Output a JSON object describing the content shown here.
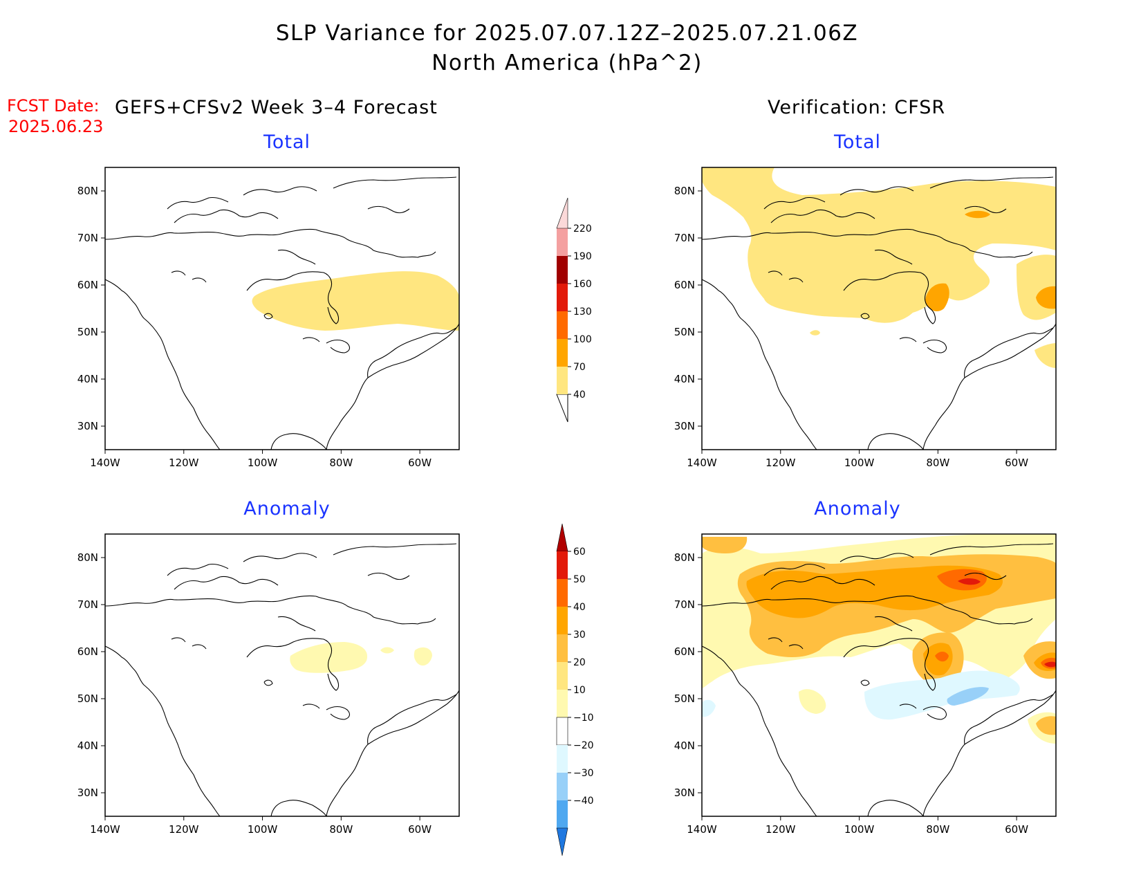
{
  "header": {
    "title_line1": "SLP Variance for 2025.07.07.12Z–2025.07.21.06Z",
    "title_line2": "North America (hPa^2)",
    "fcst_label": "FCST Date:",
    "fcst_date": "2025.06.23",
    "left_column_title": "GEFS+CFSv2 Week 3–4 Forecast",
    "right_column_title": "Verification: CFSR"
  },
  "panels": [
    {
      "id": "fcst-total",
      "subtitle": "Total"
    },
    {
      "id": "verif-total",
      "subtitle": "Total"
    },
    {
      "id": "fcst-anomaly",
      "subtitle": "Anomaly"
    },
    {
      "id": "verif-anomaly",
      "subtitle": "Anomaly"
    }
  ],
  "axes": {
    "lat_ticks": [
      "80N",
      "70N",
      "60N",
      "50N",
      "40N",
      "30N"
    ],
    "lon_ticks": [
      "140W",
      "120W",
      "100W",
      "80W",
      "60W"
    ],
    "lat_range": [
      25,
      85
    ],
    "lon_range": [
      -140,
      -50
    ]
  },
  "colorbar_total": {
    "levels": [
      "40",
      "70",
      "100",
      "130",
      "160",
      "190",
      "220"
    ],
    "colors": [
      "#ffe680",
      "#ffa500",
      "#ff6a00",
      "#e21a0a",
      "#a00000",
      "#f4a0a0",
      "#fbd9d9"
    ]
  },
  "colorbar_anomaly": {
    "levels": [
      "60",
      "50",
      "40",
      "30",
      "20",
      "10",
      "−10",
      "−20",
      "−30",
      "−40"
    ],
    "colors": [
      "#b00000",
      "#e21a0a",
      "#ff6a00",
      "#ffa500",
      "#ffbf40",
      "#ffe680",
      "#fff9b0",
      "#ffffff",
      "#dff8ff",
      "#98d0f8",
      "#4fa8f0",
      "#1f78e0"
    ]
  }
}
